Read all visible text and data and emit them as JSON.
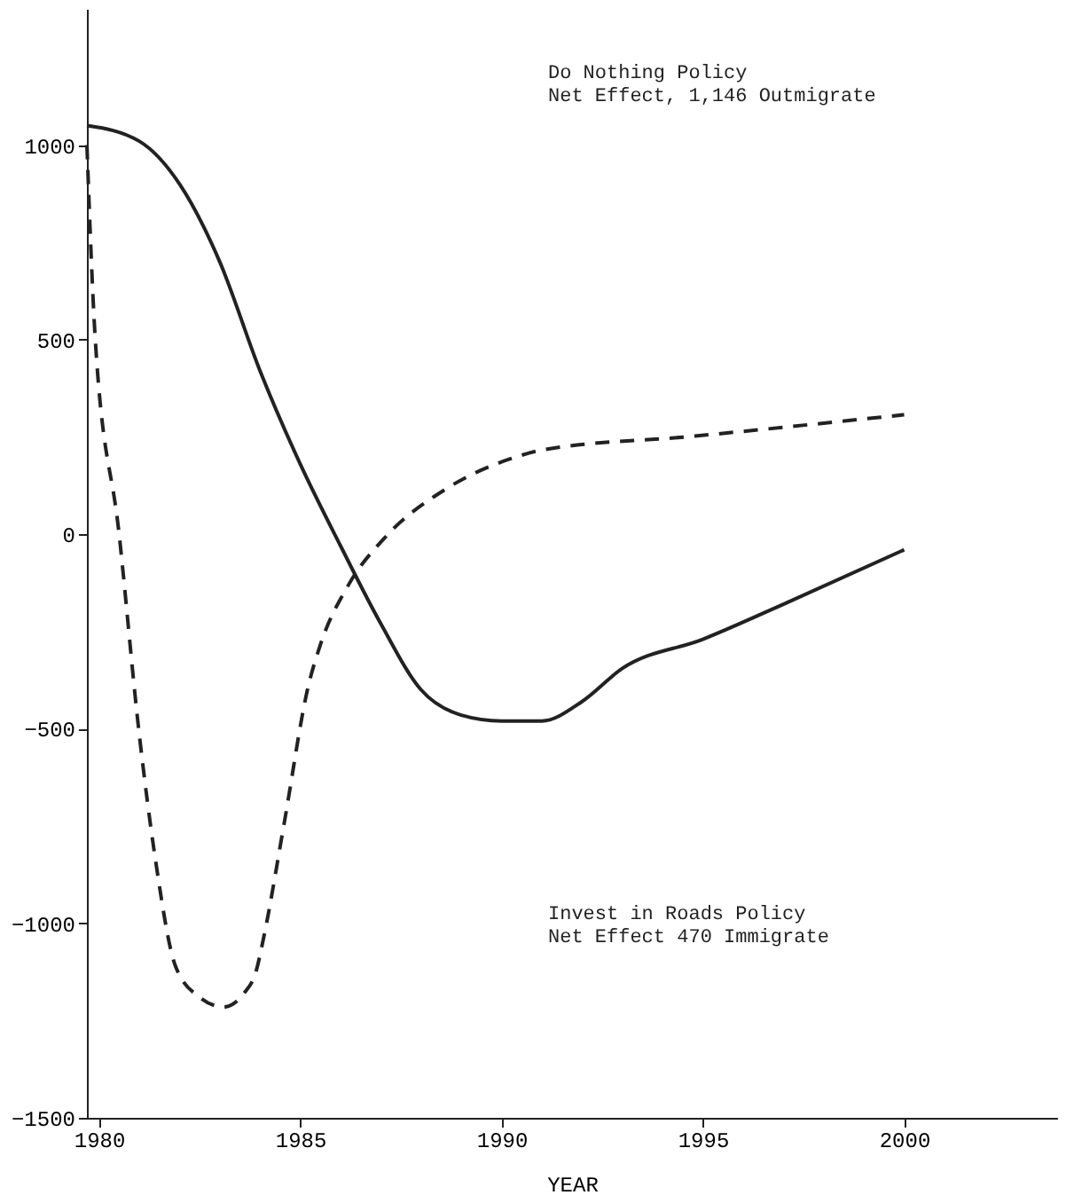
{
  "chart_data": {
    "type": "line",
    "xlabel": "YEAR",
    "xlim": [
      1979.7,
      2003.8
    ],
    "xticks": [
      1980,
      1985,
      1990,
      1995,
      2000
    ],
    "ylim": [
      -1500,
      1350
    ],
    "yticks": [
      -1500,
      -1000,
      -500,
      0,
      500,
      1000
    ],
    "grid": false,
    "marker": "none",
    "series": [
      {
        "color": "#222222",
        "line_style": "solid",
        "x": [
          1979.7,
          1981,
          1982,
          1983,
          1984,
          1985,
          1986,
          1987,
          1988,
          1989,
          1990,
          1991,
          1992,
          1993,
          1995,
          1997,
          2000
        ],
        "values": [
          1050,
          1010,
          900,
          700,
          420,
          180,
          -30,
          -230,
          -400,
          -465,
          -480,
          -480,
          -430,
          -345,
          -270,
          -180,
          -40
        ]
      },
      {
        "color": "#222222",
        "line_style": "dashed",
        "x": [
          1979.7,
          1979.9,
          1980.5,
          1981.0,
          1981.4,
          1981.9,
          1982.5,
          1983.1,
          1983.6,
          1983.9,
          1984.1,
          1984.6,
          1985.2,
          1985.5,
          1986.2,
          1987.1,
          1988.6,
          1990.2,
          1991,
          1994.8,
          2000
        ],
        "values": [
          1000,
          514,
          0,
          -514,
          -835,
          -1110,
          -1190,
          -1215,
          -1180,
          -1124,
          -1032,
          -743,
          -390,
          -284,
          -130,
          -9,
          115,
          193,
          216,
          252,
          307
        ]
      }
    ],
    "annotations": [
      "Do Nothing Policy\nNet Effect, 1,146 Outmigrate",
      "Invest in Roads Policy\nNet Effect 470 Immigrate"
    ]
  }
}
